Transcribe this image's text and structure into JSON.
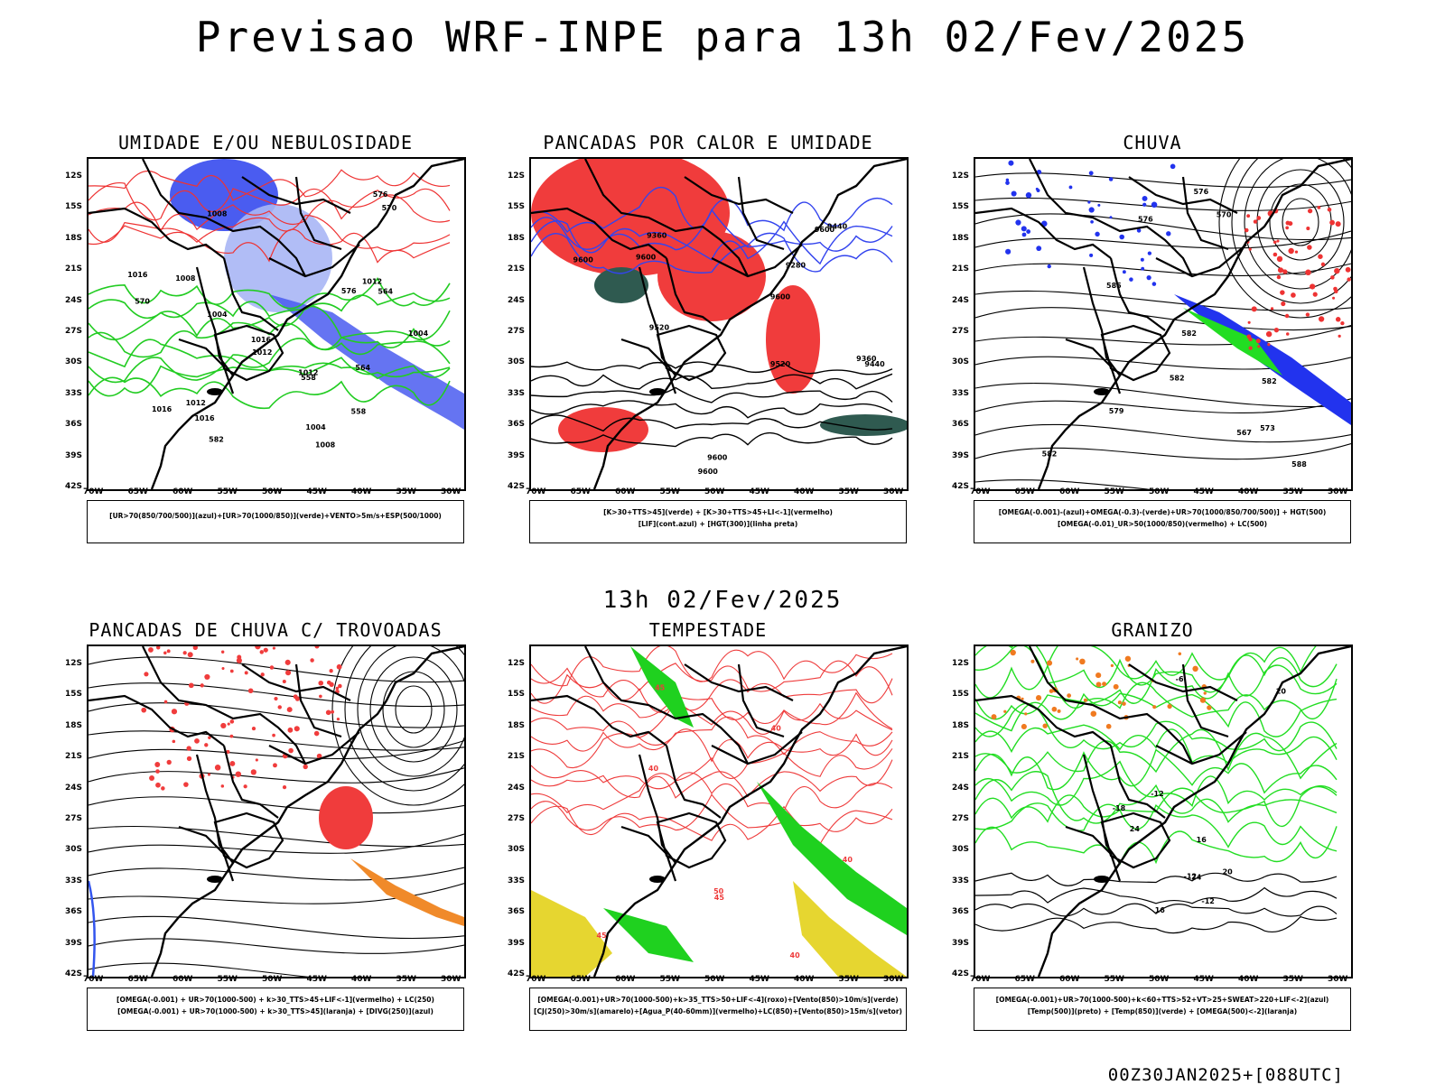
{
  "header": {
    "title": "Previsao WRF-INPE  para 13h 02/Fev/2025"
  },
  "subtitle": "13h 02/Fev/2025",
  "footer": "00Z30JAN2025+[088UTC]",
  "axes": {
    "lat": [
      "12S",
      "15S",
      "18S",
      "21S",
      "24S",
      "27S",
      "30S",
      "33S",
      "36S",
      "39S",
      "42S"
    ],
    "lon": [
      "70W",
      "65W",
      "60W",
      "55W",
      "50W",
      "45W",
      "40W",
      "35W",
      "30W"
    ]
  },
  "panels": [
    {
      "title": "UMIDADE E/OU NEBULOSIDADE",
      "legend": [
        "[UR>70(850/700/500)](azul)+[UR>70(1000/850)](verde)+VENTO>5m/s+ESP(500/1000)"
      ],
      "contour_labels": [
        "1008",
        "1008",
        "1012",
        "1008",
        "1012",
        "1004",
        "1004",
        "1004",
        "1012",
        "1016",
        "1016",
        "1016",
        "1016",
        "1012",
        "576",
        "576",
        "570",
        "570",
        "564",
        "564",
        "558",
        "558",
        "582"
      ],
      "colors": {
        "fill": "#4a5cf0",
        "fill_light": "#a9b6f5",
        "line1": "#22cc22",
        "line2": "#ee3333"
      }
    },
    {
      "title": "PANCADAS POR CALOR E UMIDADE",
      "legend": [
        "[K>30+TTS>45](verde) + [K>30+TTS>45+LI<-1](vermelho)",
        "[LIF](cont.azul) + [HGT(300)](linha preta)"
      ],
      "contour_labels": [
        "9600",
        "9600",
        "9600",
        "9600",
        "9600",
        "9600",
        "9520",
        "9520",
        "9440",
        "9440",
        "9360",
        "9360",
        "9280"
      ],
      "colors": {
        "fill": "#f03c3c",
        "fill2": "#2f5a50",
        "line1": "#3344ee"
      }
    },
    {
      "title": "CHUVA",
      "legend": [
        "[OMEGA(-0.001)-(azul)+OMEGA(-0.3)-(verde)+UR>70(1000/850/700/500)] + HGT(500)",
        "[OMEGA(-0.01)_UR>50(1000/850)(vermelho) + LC(500)"
      ],
      "contour_labels": [
        "582",
        "582",
        "582",
        "582",
        "576",
        "576",
        "573",
        "570",
        "567",
        "579",
        "588",
        "585"
      ],
      "colors": {
        "fill": "#2233ee",
        "fill2": "#22dd22",
        "fill3": "#ee3333"
      }
    },
    {
      "title": "PANCADAS DE CHUVA C/ TROVOADAS",
      "legend": [
        "[OMEGA(-0.001) + UR>70(1000-500) + k>30_TTS>45+LIF<-1](vermelho) + LC(250)",
        "[OMEGA(-0.001) + UR>70(1000-500) + k>30_TTS>45](laranja) + [DIVG(250)](azul)"
      ],
      "contour_labels": [],
      "colors": {
        "fill": "#f03c3c",
        "fill2": "#f08a2a",
        "line1": "#3355ee"
      }
    },
    {
      "title": "TEMPESTADE",
      "legend": [
        "[OMEGA(-0.001)+UR>70(1000-500)+k>35_TTS>50+LIF<-4](roxo)+[Vento(850)>10m/s](verde)",
        "[CJ(250)>30m/s](amarelo)+[Agua_P(40-60mm)](vermelho)+LC(850)+[Vento(850)>15m/s](vetor)"
      ],
      "contour_labels": [
        "40",
        "40",
        "45",
        "45",
        "50",
        "40",
        "45",
        "40"
      ],
      "colors": {
        "fill": "#1fd11f",
        "fill2": "#e6d630",
        "line1": "#ee3b3b"
      }
    },
    {
      "title": "GRANIZO",
      "legend": [
        "[OMEGA(-0.001)+UR>70(1000-500)+k<60+TTS>52+VT>25+SWEAT>220+LIF<-2](azul)",
        "[Temp(500)](preto) + [Temp(850)](verde) + [OMEGA(500)<-2](laranja)"
      ],
      "contour_labels": [
        "-6",
        "-12",
        "-12",
        "-12",
        "-18",
        "16",
        "16",
        "20",
        "20",
        "24",
        "24"
      ],
      "colors": {
        "line1": "#22dd22",
        "dots": "#f07a20"
      }
    }
  ]
}
